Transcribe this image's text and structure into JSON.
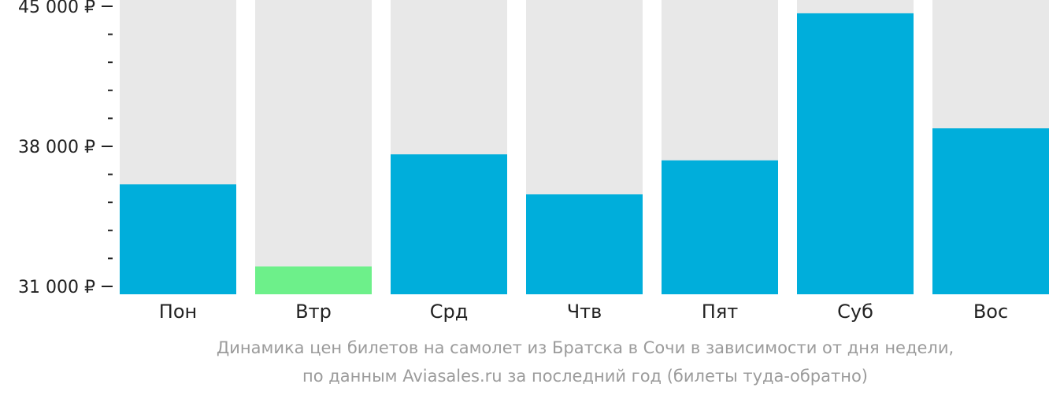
{
  "chart_data": {
    "type": "bar",
    "categories": [
      "Пон",
      "Втр",
      "Срд",
      "Чтв",
      "Пят",
      "Суб",
      "Вос"
    ],
    "values": [
      36100,
      32000,
      37600,
      35600,
      37300,
      44650,
      38900
    ],
    "ylim": [
      31000,
      45000
    ],
    "yticks_major": [
      31000,
      38000,
      45000
    ],
    "ytick_labels": [
      "31 000 ₽",
      "38 000 ₽",
      "45 000 ₽"
    ],
    "yticks_minor": [
      32400,
      33800,
      35200,
      36600,
      39400,
      40800,
      42200,
      43600
    ],
    "highlight_index": 1,
    "colors": {
      "bar": "#00aedb",
      "highlight": "#6df08a",
      "background_bar": "#e8e8e8",
      "axis": "#222222"
    }
  },
  "caption": {
    "line1": "Динамика цен билетов на самолет из Братска в Сочи в зависимости от дня недели,",
    "line2": "по данным Aviasales.ru за последний год (билеты туда-обратно)"
  }
}
